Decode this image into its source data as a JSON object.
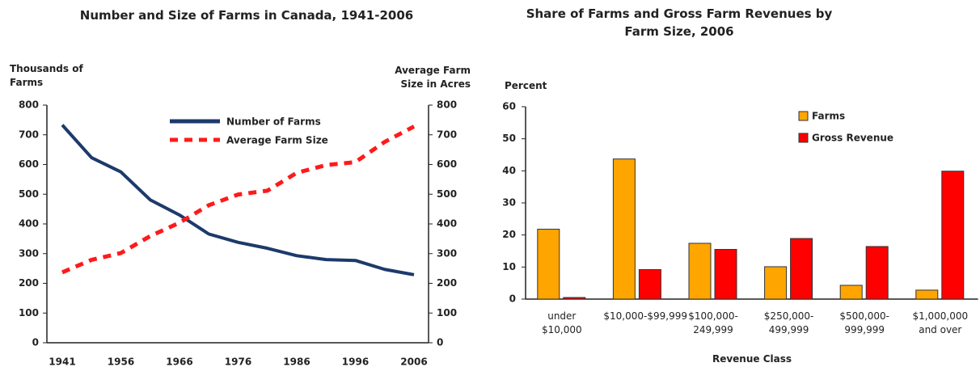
{
  "charts": [
    {
      "type": "line",
      "title": "Number and Size of Farms in Canada, 1941-2006",
      "y_label": "Thousands of Farms",
      "y2_label": "Average Farm Size in Acres",
      "categories": [
        "1941",
        null,
        "1956",
        null,
        "1966",
        null,
        "1976",
        null,
        "1986",
        null,
        "1996",
        null,
        "2006"
      ],
      "series": [
        {
          "name": "Number of Farms",
          "color": "#1c3a6b",
          "values": [
            733,
            623,
            575,
            481,
            430,
            366,
            338,
            318,
            293,
            280,
            277,
            247,
            229
          ]
        },
        {
          "name": "Average Farm Size",
          "color": "#ff1a1a",
          "axis": "y2",
          "values": [
            237,
            279,
            302,
            359,
            404,
            463,
            499,
            512,
            572,
            598,
            608,
            676,
            728
          ]
        }
      ],
      "ylim": [
        0,
        800
      ],
      "yticks": [
        0,
        100,
        200,
        300,
        400,
        500,
        600,
        700,
        800
      ],
      "y2lim": [
        0,
        800
      ],
      "y2ticks": [
        0,
        100,
        200,
        300,
        400,
        500,
        600,
        700,
        800
      ]
    },
    {
      "type": "bar",
      "title": "Share of Farms and Gross Farm Revenues by Farm Size, 2006",
      "y_label": "Percent",
      "x_label": "Revenue Class",
      "categories": [
        "under $10,000",
        "$10,000-$99,999",
        "$100,000-249,999",
        "$250,000-499,999",
        "$500,000-999,999",
        "$1,000,000 and over"
      ],
      "series": [
        {
          "name": "Farms",
          "color": "#ffa500",
          "values": [
            21.8,
            43.7,
            17.4,
            10.1,
            4.3,
            2.8
          ]
        },
        {
          "name": "Gross Revenue",
          "color": "#ff0000",
          "values": [
            0.5,
            9.2,
            15.5,
            18.9,
            16.4,
            39.9
          ]
        }
      ],
      "ylim": [
        0,
        60
      ],
      "yticks": [
        0,
        10,
        20,
        30,
        40,
        50,
        60
      ]
    }
  ]
}
